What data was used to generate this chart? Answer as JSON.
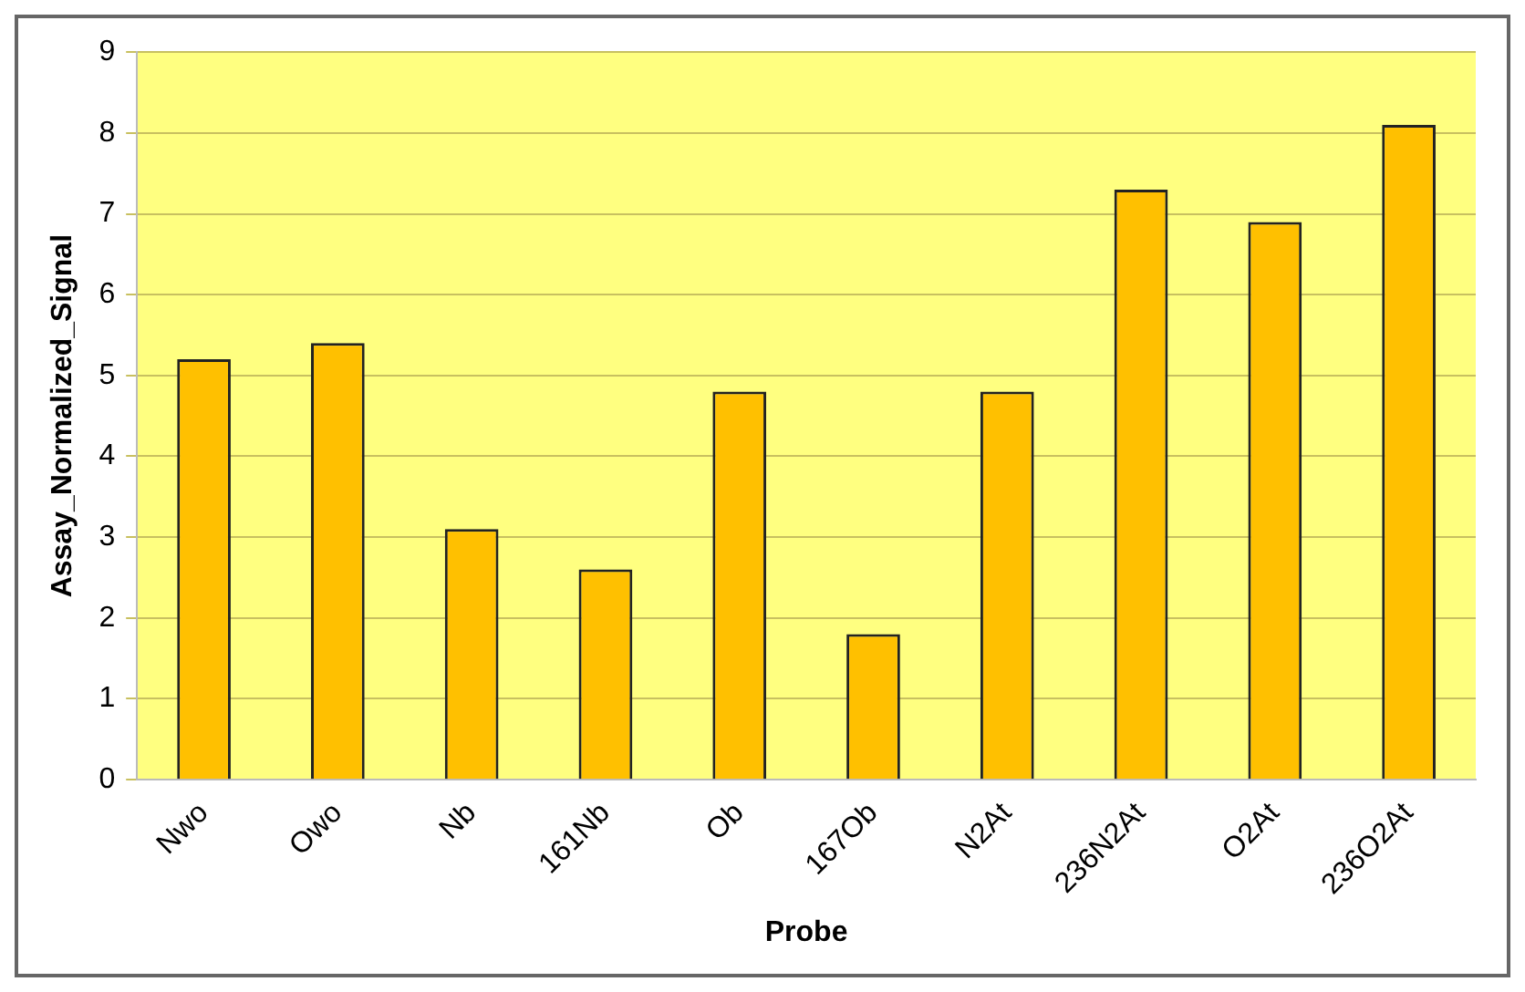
{
  "chart_data": {
    "type": "bar",
    "xlabel": "Probe",
    "ylabel": "Assay_Normalized_Signal",
    "categories": [
      "Nwo",
      "Owo",
      "Nb",
      "161Nb",
      "Ob",
      "167Ob",
      "N2At",
      "236N2At",
      "O2At",
      "236O2At"
    ],
    "values": [
      5.2,
      5.4,
      3.1,
      2.6,
      4.8,
      1.8,
      4.8,
      7.3,
      6.9,
      8.1
    ],
    "color": "#ffc000",
    "ylim": [
      0,
      9
    ],
    "yticks": [
      0,
      1,
      2,
      3,
      4,
      5,
      6,
      7,
      8,
      9
    ],
    "grid": "y",
    "legend": false
  }
}
